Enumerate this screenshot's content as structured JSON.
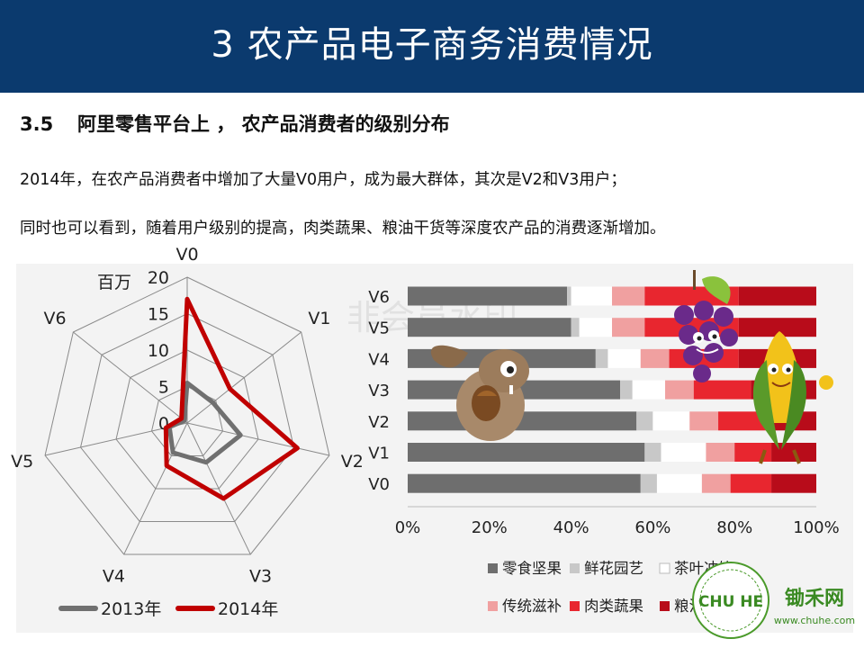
{
  "header": {
    "title": "3   农产品电子商务消费情况"
  },
  "section": {
    "number": "3.5",
    "title": "阿里零售平台上 ， 农产品消费者的级别分布"
  },
  "paragraphs": [
    "2014年，在农产品消费者中增加了大量V0用户，成为最大群体，其次是V2和V3用户；",
    "同时也可以看到，随着用户级别的提高，肉类蔬果、粮油干货等深度农产品的消费逐渐增加。"
  ],
  "watermark_text": "非会员水印",
  "logo": {
    "name": "锄禾网",
    "url": "www.chuhe.com",
    "seal_text": "CHU HE"
  },
  "colors": {
    "header_bg": "#0b3a6e",
    "series_2013": "#707070",
    "series_2014": "#c00000",
    "cat_snacks": "#6e6e6e",
    "cat_flowers": "#c8c8c8",
    "cat_tea": "#ffffff",
    "cat_tonic": "#f0a0a0",
    "cat_meat_veg": "#e8262f",
    "cat_grain": "#b80c1a"
  },
  "chart_data": [
    {
      "type": "radar",
      "unit_label": "百万",
      "axes": [
        "V0",
        "V1",
        "V2",
        "V3",
        "V4",
        "V5",
        "V6"
      ],
      "rlim": [
        0,
        20
      ],
      "ticks": [
        "0",
        "5",
        "10",
        "15",
        "20"
      ],
      "tick_values": [
        0,
        5,
        10,
        15,
        20
      ],
      "series": [
        {
          "name": "2013年",
          "values": [
            5.5,
            4.5,
            7.5,
            6,
            4.5,
            2.5,
            0.5
          ]
        },
        {
          "name": "2014年",
          "values": [
            17,
            7.5,
            15.5,
            11.5,
            6.5,
            3,
            1
          ]
        }
      ],
      "legend_position": "bottom"
    },
    {
      "type": "bar",
      "orientation": "horizontal",
      "stacked": "percent",
      "categories": [
        "V6",
        "V5",
        "V4",
        "V3",
        "V2",
        "V1",
        "V0"
      ],
      "xticks": [
        "0%",
        "20%",
        "40%",
        "60%",
        "80%",
        "100%"
      ],
      "xlim": [
        0,
        100
      ],
      "series": [
        {
          "name": "零食坚果",
          "values": [
            39,
            40,
            46,
            52,
            56,
            58,
            57
          ]
        },
        {
          "name": "鲜花园艺",
          "values": [
            1,
            2,
            3,
            3,
            4,
            4,
            4
          ]
        },
        {
          "name": "茶叶冲饮",
          "values": [
            10,
            8,
            8,
            8,
            9,
            11,
            11
          ]
        },
        {
          "name": "传统滋补",
          "values": [
            8,
            8,
            7,
            7,
            7,
            7,
            7
          ]
        },
        {
          "name": "肉类蔬果",
          "values": [
            23,
            23,
            17,
            14,
            13,
            9,
            10
          ]
        },
        {
          "name": "粮油干货",
          "values": [
            19,
            19,
            19,
            16,
            11,
            11,
            11
          ]
        }
      ],
      "legend_position": "bottom"
    }
  ]
}
